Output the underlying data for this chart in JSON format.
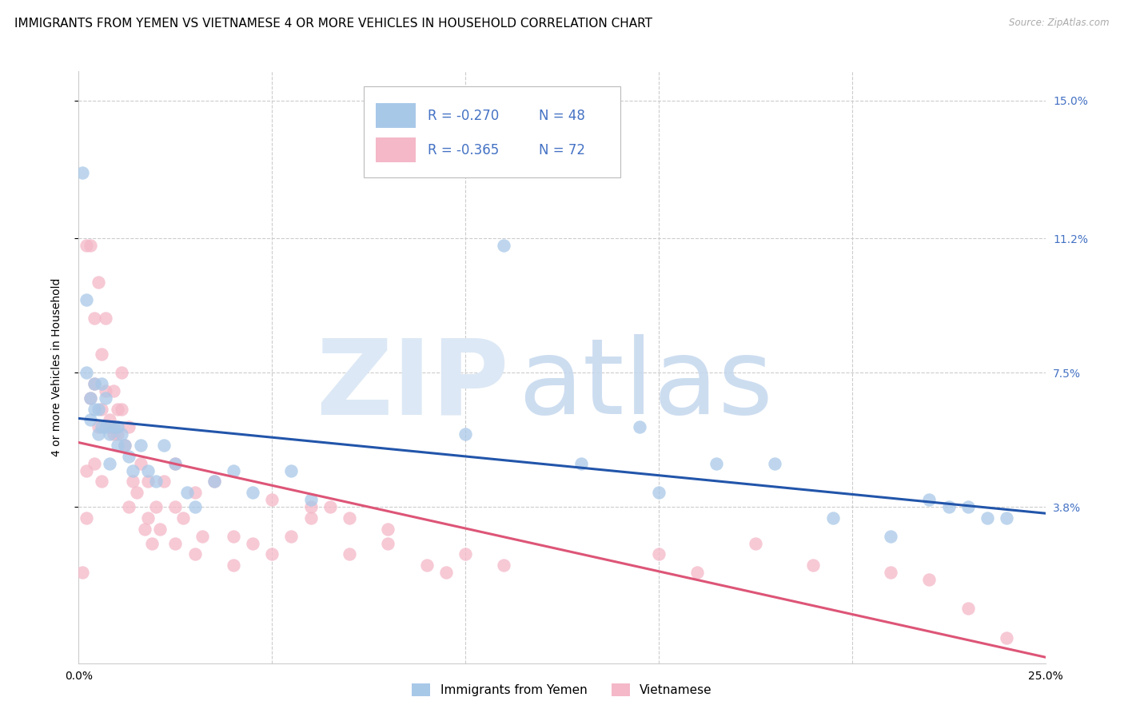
{
  "title": "IMMIGRANTS FROM YEMEN VS VIETNAMESE 4 OR MORE VEHICLES IN HOUSEHOLD CORRELATION CHART",
  "source": "Source: ZipAtlas.com",
  "ylabel": "4 or more Vehicles in Household",
  "xlim": [
    0.0,
    0.25
  ],
  "ylim": [
    -0.005,
    0.158
  ],
  "xtick_positions": [
    0.0,
    0.05,
    0.1,
    0.15,
    0.2,
    0.25
  ],
  "xticklabels": [
    "0.0%",
    "",
    "",
    "",
    "",
    "25.0%"
  ],
  "yticks": [
    0.038,
    0.075,
    0.112,
    0.15
  ],
  "yticklabels": [
    "3.8%",
    "7.5%",
    "11.2%",
    "15.0%"
  ],
  "series1_name": "Immigrants from Yemen",
  "series1_R": -0.27,
  "series1_N": 48,
  "series1_color": "#a8c8e8",
  "series1_line_color": "#2255aa",
  "series2_name": "Vietnamese",
  "series2_R": -0.365,
  "series2_N": 72,
  "series2_color": "#f4b8c8",
  "series2_line_color": "#dd5577",
  "legend_text_color": "#4472c4",
  "background_color": "#ffffff",
  "grid_color": "#cccccc",
  "title_fontsize": 11,
  "axis_label_fontsize": 10,
  "tick_fontsize": 10,
  "right_tick_color": "#4472c4",
  "series1_x": [
    0.001,
    0.002,
    0.002,
    0.003,
    0.003,
    0.004,
    0.004,
    0.005,
    0.005,
    0.006,
    0.006,
    0.007,
    0.007,
    0.008,
    0.008,
    0.009,
    0.01,
    0.01,
    0.011,
    0.012,
    0.013,
    0.014,
    0.016,
    0.018,
    0.02,
    0.022,
    0.025,
    0.028,
    0.03,
    0.035,
    0.04,
    0.045,
    0.055,
    0.06,
    0.1,
    0.11,
    0.13,
    0.145,
    0.15,
    0.165,
    0.18,
    0.195,
    0.21,
    0.22,
    0.225,
    0.23,
    0.235,
    0.24
  ],
  "series1_y": [
    0.13,
    0.095,
    0.075,
    0.068,
    0.062,
    0.072,
    0.065,
    0.065,
    0.058,
    0.072,
    0.06,
    0.068,
    0.06,
    0.058,
    0.05,
    0.06,
    0.06,
    0.055,
    0.058,
    0.055,
    0.052,
    0.048,
    0.055,
    0.048,
    0.045,
    0.055,
    0.05,
    0.042,
    0.038,
    0.045,
    0.048,
    0.042,
    0.048,
    0.04,
    0.058,
    0.11,
    0.05,
    0.06,
    0.042,
    0.05,
    0.05,
    0.035,
    0.03,
    0.04,
    0.038,
    0.038,
    0.035,
    0.035
  ],
  "series2_x": [
    0.001,
    0.002,
    0.002,
    0.003,
    0.003,
    0.004,
    0.004,
    0.005,
    0.005,
    0.006,
    0.006,
    0.007,
    0.007,
    0.008,
    0.008,
    0.009,
    0.009,
    0.01,
    0.01,
    0.011,
    0.011,
    0.012,
    0.013,
    0.014,
    0.015,
    0.016,
    0.017,
    0.018,
    0.019,
    0.02,
    0.021,
    0.022,
    0.025,
    0.025,
    0.027,
    0.03,
    0.032,
    0.035,
    0.04,
    0.045,
    0.05,
    0.055,
    0.06,
    0.065,
    0.07,
    0.08,
    0.09,
    0.095,
    0.1,
    0.11,
    0.002,
    0.004,
    0.006,
    0.008,
    0.01,
    0.013,
    0.018,
    0.025,
    0.03,
    0.04,
    0.05,
    0.06,
    0.07,
    0.08,
    0.15,
    0.16,
    0.175,
    0.19,
    0.21,
    0.22,
    0.23,
    0.24
  ],
  "series2_y": [
    0.02,
    0.035,
    0.11,
    0.068,
    0.11,
    0.072,
    0.09,
    0.06,
    0.1,
    0.065,
    0.08,
    0.07,
    0.09,
    0.062,
    0.06,
    0.058,
    0.07,
    0.058,
    0.06,
    0.065,
    0.075,
    0.055,
    0.06,
    0.045,
    0.042,
    0.05,
    0.032,
    0.035,
    0.028,
    0.038,
    0.032,
    0.045,
    0.038,
    0.05,
    0.035,
    0.042,
    0.03,
    0.045,
    0.03,
    0.028,
    0.04,
    0.03,
    0.038,
    0.038,
    0.025,
    0.028,
    0.022,
    0.02,
    0.025,
    0.022,
    0.048,
    0.05,
    0.045,
    0.06,
    0.065,
    0.038,
    0.045,
    0.028,
    0.025,
    0.022,
    0.025,
    0.035,
    0.035,
    0.032,
    0.025,
    0.02,
    0.028,
    0.022,
    0.02,
    0.018,
    0.01,
    0.002
  ]
}
